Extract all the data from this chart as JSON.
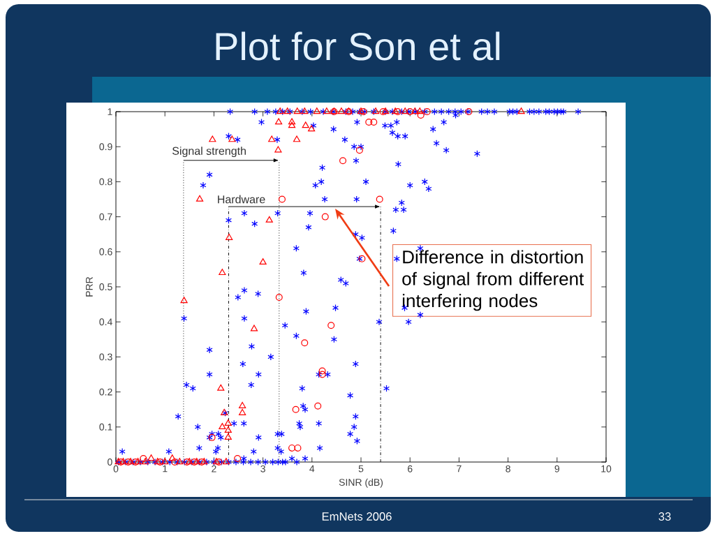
{
  "chart_data": {
    "type": "scatter",
    "title": "Plot for Son et al",
    "xlabel": "SINR (dB)",
    "ylabel": "PRR",
    "xlim": [
      0,
      10
    ],
    "ylim": [
      0,
      1
    ],
    "xticks": [
      0,
      1,
      2,
      3,
      4,
      5,
      6,
      7,
      8,
      9,
      10
    ],
    "yticks": [
      0,
      0.1,
      0.2,
      0.3,
      0.4,
      0.5,
      0.6,
      0.7,
      0.8,
      0.9,
      1
    ],
    "series": [
      {
        "color": "#0000ff",
        "marker": "cross",
        "x": [
          2.33,
          2.83,
          3.09,
          3.26,
          3.4,
          3.55,
          3.8,
          3.97,
          4.23,
          4.43,
          4.69,
          4.83,
          4.97,
          5.07,
          5.26,
          5.5,
          5.64,
          5.83,
          5.97,
          6.11,
          6.3,
          6.5,
          6.64,
          6.79,
          6.92,
          7.04,
          7.18,
          7.46,
          7.58,
          7.72,
          8.03,
          8.1,
          8.18,
          8.44,
          8.53,
          8.63,
          8.77,
          8.84,
          8.94,
          9.01,
          9.08,
          9.13,
          9.43,
          2.97,
          2.3,
          2.48,
          3.29,
          4.03,
          4.44,
          4.67,
          4.86,
          5.0,
          4.92,
          5.49,
          5.61,
          5.73,
          6.47,
          6.54,
          6.74,
          6.69,
          5.64,
          5.75,
          5.9,
          7.37,
          6.93,
          1.91,
          1.78,
          4.9,
          4.21,
          4.19,
          4.07,
          5.1,
          5.76,
          6.0,
          6.3,
          6.38,
          4.26,
          4.91,
          5.83,
          5.71,
          5.87,
          2.3,
          2.62,
          2.83,
          3.3,
          3.96,
          3.93,
          5.66,
          4.89,
          5.02,
          3.68,
          6.21,
          5.73,
          4.97,
          3.83,
          4.59,
          4.69,
          2.62,
          2.49,
          2.9,
          4.48,
          3.88,
          3.45,
          5.37,
          5.89,
          5.97,
          6.21,
          1.39,
          2.62,
          3.68,
          4.45,
          2.77,
          1.91,
          3.16,
          2.59,
          4.89,
          1.91,
          2.91,
          4.14,
          4.32,
          1.44,
          1.57,
          2.76,
          3.8,
          5.52,
          4.78,
          3.82,
          3.86,
          1.27,
          2.23,
          4.89,
          1.67,
          2.41,
          2.61,
          3.74,
          3.76,
          4.14,
          4.86,
          1.96,
          2.09,
          3.3,
          3.38,
          4.78,
          1.91,
          2.14,
          2.91,
          4.92,
          1.7,
          2.04,
          2.08,
          2.81,
          3.3,
          3.37,
          4.16,
          0.13,
          1.08,
          2.61,
          3.59,
          3.86,
          0.05,
          0.2,
          0.35,
          0.5,
          0.65,
          0.8,
          0.95,
          1.1,
          1.25,
          1.4,
          1.55,
          1.7,
          1.85,
          2.0,
          2.15,
          2.3,
          2.45,
          2.6,
          2.75,
          2.9,
          3.05,
          3.2,
          3.31,
          3.4,
          3.46,
          3.69
        ],
        "values": [
          1,
          1,
          1,
          1,
          1,
          1,
          1,
          1,
          1,
          1,
          1,
          1,
          1,
          1,
          1,
          1,
          1,
          1,
          1,
          1,
          1,
          1,
          1,
          1,
          1,
          1,
          1,
          1,
          1,
          1,
          1,
          1,
          1,
          1,
          1,
          1,
          1,
          1,
          1,
          1,
          1,
          1,
          1,
          0.97,
          0.93,
          0.92,
          0.92,
          0.96,
          0.95,
          0.92,
          0.9,
          0.9,
          0.97,
          0.96,
          0.96,
          0.97,
          0.95,
          0.91,
          0.89,
          0.97,
          0.94,
          0.93,
          0.93,
          0.88,
          0.99,
          0.82,
          0.79,
          0.86,
          0.84,
          0.8,
          0.79,
          0.8,
          0.85,
          0.79,
          0.8,
          0.78,
          0.75,
          0.75,
          0.74,
          0.72,
          0.72,
          0.69,
          0.71,
          0.68,
          0.71,
          0.71,
          0.67,
          0.66,
          0.65,
          0.64,
          0.61,
          0.61,
          0.58,
          0.58,
          0.54,
          0.52,
          0.51,
          0.49,
          0.47,
          0.48,
          0.44,
          0.43,
          0.39,
          0.4,
          0.44,
          0.4,
          0.42,
          0.41,
          0.41,
          0.36,
          0.35,
          0.33,
          0.32,
          0.3,
          0.28,
          0.28,
          0.25,
          0.25,
          0.25,
          0.25,
          0.22,
          0.21,
          0.22,
          0.21,
          0.21,
          0.19,
          0.16,
          0.15,
          0.13,
          0.14,
          0.13,
          0.1,
          0.11,
          0.11,
          0.11,
          0.1,
          0.11,
          0.1,
          0.08,
          0.08,
          0.08,
          0.08,
          0.08,
          0.07,
          0.07,
          0.07,
          0.06,
          0.04,
          0.03,
          0.04,
          0.03,
          0.04,
          0.03,
          0.04,
          0.03,
          0.03,
          0.01,
          0.01,
          0.01,
          0,
          0,
          0,
          0,
          0,
          0,
          0,
          0,
          0,
          0,
          0,
          0,
          0,
          0,
          0,
          0,
          0,
          0,
          0,
          0,
          0,
          0,
          0,
          0,
          0,
          0
        ]
      },
      {
        "color": "#ff0000",
        "marker": "triangle",
        "x": [
          1.97,
          2.37,
          3.18,
          3.31,
          1.71,
          3.13,
          2.31,
          3.0,
          2.17,
          3.32,
          3.59,
          3.59,
          3.87,
          3.99,
          3.69,
          1.39,
          2.82,
          2.14,
          2.58,
          2.58,
          2.21,
          2.17,
          2.29,
          2.29,
          2.29,
          0.72,
          1.15,
          0.05,
          0.15,
          0.3,
          0.45,
          0.6,
          0.85,
          1.0,
          1.3,
          1.5,
          1.65,
          1.8,
          2.05,
          2.25,
          3.35,
          3.5,
          3.7,
          3.85,
          4.1,
          4.3,
          4.45,
          4.6,
          4.75,
          5.0,
          5.3,
          5.5,
          5.7,
          5.9,
          6.1,
          6.2,
          8.27
        ],
        "values": [
          0.92,
          0.92,
          0.92,
          0.89,
          0.75,
          0.69,
          0.64,
          0.57,
          0.54,
          0.97,
          0.97,
          0.96,
          0.96,
          0.95,
          0.92,
          0.46,
          0.38,
          0.21,
          0.16,
          0.14,
          0.14,
          0.1,
          0.11,
          0.09,
          0.07,
          0.01,
          0.01,
          0,
          0,
          0,
          0,
          0,
          0,
          0,
          0,
          0,
          0,
          0,
          0,
          0,
          1,
          1,
          1,
          1,
          1,
          1,
          1,
          1,
          1,
          1,
          1,
          1,
          1,
          1,
          1,
          1,
          1
        ]
      },
      {
        "color": "#ff0000",
        "marker": "circle",
        "x": [
          3.39,
          5.38,
          4.27,
          4.63,
          4.97,
          5.16,
          5.26,
          5.02,
          6.22,
          3.33,
          4.39,
          3.85,
          4.21,
          4.21,
          4.12,
          3.67,
          3.59,
          3.71,
          0.56,
          1.96,
          2.48,
          0.1,
          0.25,
          0.4,
          0.9,
          1.2,
          1.45,
          1.6,
          1.75,
          2.1,
          4.45,
          4.75,
          5.05,
          5.45,
          5.75,
          6.0,
          6.35,
          7.2
        ],
        "values": [
          0.75,
          0.75,
          0.7,
          0.86,
          0.89,
          0.97,
          0.97,
          0.58,
          0.99,
          0.47,
          0.39,
          0.34,
          0.26,
          0.25,
          0.16,
          0.15,
          0.04,
          0.04,
          0.01,
          0.07,
          0.01,
          0,
          0,
          0,
          0,
          0,
          0,
          0,
          0,
          0,
          1,
          1,
          1,
          1,
          1,
          1,
          1,
          1
        ]
      }
    ],
    "ref_lines": [
      {
        "axis": "x",
        "value": 1.38,
        "label": "Signal strength",
        "line_style": "dotted"
      },
      {
        "axis": "x",
        "value": 3.33,
        "line_style": "dotted"
      },
      {
        "axis": "x",
        "value": 2.3,
        "label": "Hardware",
        "line_style": "dashdot"
      },
      {
        "axis": "x",
        "value": 5.4,
        "line_style": "dashdot"
      }
    ],
    "annotations": [
      "Difference in distortion of signal from different interfering nodes",
      "EmNets 2006",
      "33"
    ]
  }
}
